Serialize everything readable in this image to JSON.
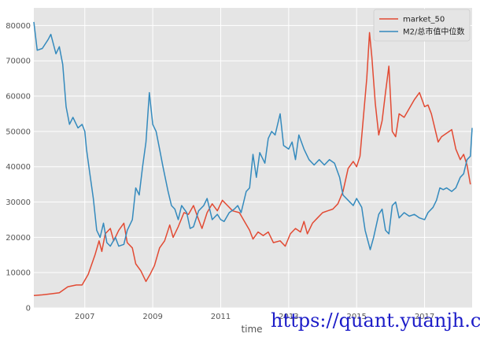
{
  "chart_data": {
    "type": "line",
    "title": "",
    "xlabel": "time",
    "ylabel": "",
    "x_range": [
      2005.5,
      2018.4
    ],
    "ylim": [
      0,
      85000
    ],
    "grid": true,
    "legend_position": "top-right",
    "x_ticks": [
      2007,
      2009,
      2011,
      2013,
      2015,
      2017
    ],
    "x_tick_labels": [
      "2007",
      "2009",
      "2011",
      "2013",
      "2015",
      "2017"
    ],
    "y_ticks": [
      0,
      10000,
      20000,
      30000,
      40000,
      50000,
      60000,
      70000,
      80000
    ],
    "y_tick_labels": [
      "0",
      "10000",
      "20000",
      "30000",
      "40000",
      "50000",
      "60000",
      "70000",
      "80000"
    ],
    "series": [
      {
        "name": "market_50",
        "color": "#e24a33",
        "points": [
          [
            2005.5,
            3500
          ],
          [
            2005.75,
            3700
          ],
          [
            2006.0,
            4000
          ],
          [
            2006.25,
            4300
          ],
          [
            2006.5,
            6000
          ],
          [
            2006.75,
            6500
          ],
          [
            2006.92,
            6500
          ],
          [
            2007.1,
            9500
          ],
          [
            2007.3,
            15000
          ],
          [
            2007.42,
            19000
          ],
          [
            2007.5,
            16000
          ],
          [
            2007.6,
            21000
          ],
          [
            2007.75,
            22500
          ],
          [
            2007.85,
            19000
          ],
          [
            2008.0,
            22000
          ],
          [
            2008.15,
            24000
          ],
          [
            2008.25,
            18500
          ],
          [
            2008.4,
            17000
          ],
          [
            2008.5,
            12500
          ],
          [
            2008.65,
            10500
          ],
          [
            2008.8,
            7500
          ],
          [
            2008.92,
            9500
          ],
          [
            2009.05,
            12000
          ],
          [
            2009.2,
            17000
          ],
          [
            2009.35,
            19000
          ],
          [
            2009.5,
            23500
          ],
          [
            2009.6,
            20000
          ],
          [
            2009.75,
            23000
          ],
          [
            2009.92,
            27000
          ],
          [
            2010.05,
            26500
          ],
          [
            2010.2,
            29000
          ],
          [
            2010.35,
            25000
          ],
          [
            2010.45,
            22500
          ],
          [
            2010.6,
            27000
          ],
          [
            2010.75,
            29500
          ],
          [
            2010.9,
            27500
          ],
          [
            2011.05,
            30500
          ],
          [
            2011.2,
            29000
          ],
          [
            2011.35,
            27500
          ],
          [
            2011.55,
            27000
          ],
          [
            2011.7,
            24500
          ],
          [
            2011.85,
            22000
          ],
          [
            2011.95,
            19500
          ],
          [
            2012.1,
            21500
          ],
          [
            2012.25,
            20500
          ],
          [
            2012.4,
            21500
          ],
          [
            2012.55,
            18500
          ],
          [
            2012.75,
            19000
          ],
          [
            2012.9,
            17500
          ],
          [
            2013.05,
            21000
          ],
          [
            2013.2,
            22500
          ],
          [
            2013.35,
            21500
          ],
          [
            2013.45,
            24500
          ],
          [
            2013.55,
            21000
          ],
          [
            2013.7,
            24000
          ],
          [
            2013.85,
            25500
          ],
          [
            2014.0,
            27000
          ],
          [
            2014.15,
            27500
          ],
          [
            2014.3,
            28000
          ],
          [
            2014.45,
            29500
          ],
          [
            2014.6,
            33000
          ],
          [
            2014.75,
            39500
          ],
          [
            2014.9,
            41500
          ],
          [
            2015.0,
            40000
          ],
          [
            2015.1,
            43000
          ],
          [
            2015.2,
            54000
          ],
          [
            2015.3,
            65000
          ],
          [
            2015.38,
            78000
          ],
          [
            2015.45,
            71000
          ],
          [
            2015.55,
            58000
          ],
          [
            2015.65,
            49000
          ],
          [
            2015.75,
            53000
          ],
          [
            2015.85,
            61000
          ],
          [
            2015.95,
            68500
          ],
          [
            2016.05,
            50000
          ],
          [
            2016.15,
            48500
          ],
          [
            2016.25,
            55000
          ],
          [
            2016.4,
            54000
          ],
          [
            2016.55,
            56500
          ],
          [
            2016.7,
            59000
          ],
          [
            2016.85,
            61000
          ],
          [
            2017.0,
            57000
          ],
          [
            2017.1,
            57500
          ],
          [
            2017.2,
            55000
          ],
          [
            2017.3,
            51000
          ],
          [
            2017.4,
            47000
          ],
          [
            2017.5,
            48500
          ],
          [
            2017.65,
            49500
          ],
          [
            2017.8,
            50500
          ],
          [
            2017.92,
            45000
          ],
          [
            2018.05,
            42000
          ],
          [
            2018.15,
            43500
          ],
          [
            2018.25,
            40500
          ],
          [
            2018.35,
            35000
          ]
        ]
      },
      {
        "name": "M2/总市值中位数",
        "color": "#348abd",
        "points": [
          [
            2005.5,
            81000
          ],
          [
            2005.6,
            73000
          ],
          [
            2005.75,
            73500
          ],
          [
            2005.92,
            76000
          ],
          [
            2006.0,
            77500
          ],
          [
            2006.15,
            72000
          ],
          [
            2006.25,
            74000
          ],
          [
            2006.35,
            69000
          ],
          [
            2006.45,
            57000
          ],
          [
            2006.55,
            52000
          ],
          [
            2006.65,
            54000
          ],
          [
            2006.8,
            51000
          ],
          [
            2006.92,
            52000
          ],
          [
            2007.0,
            50000
          ],
          [
            2007.05,
            45000
          ],
          [
            2007.15,
            38000
          ],
          [
            2007.25,
            31000
          ],
          [
            2007.35,
            22000
          ],
          [
            2007.45,
            20000
          ],
          [
            2007.55,
            24000
          ],
          [
            2007.65,
            18500
          ],
          [
            2007.75,
            17500
          ],
          [
            2007.9,
            20000
          ],
          [
            2008.0,
            17500
          ],
          [
            2008.15,
            18000
          ],
          [
            2008.25,
            22000
          ],
          [
            2008.4,
            25000
          ],
          [
            2008.5,
            34000
          ],
          [
            2008.6,
            32000
          ],
          [
            2008.7,
            40000
          ],
          [
            2008.8,
            47000
          ],
          [
            2008.9,
            61000
          ],
          [
            2009.0,
            52000
          ],
          [
            2009.1,
            50000
          ],
          [
            2009.2,
            45000
          ],
          [
            2009.3,
            40000
          ],
          [
            2009.45,
            33000
          ],
          [
            2009.55,
            29000
          ],
          [
            2009.65,
            28000
          ],
          [
            2009.75,
            25000
          ],
          [
            2009.85,
            29000
          ],
          [
            2010.0,
            27000
          ],
          [
            2010.1,
            22500
          ],
          [
            2010.2,
            23000
          ],
          [
            2010.35,
            27500
          ],
          [
            2010.5,
            29000
          ],
          [
            2010.6,
            31000
          ],
          [
            2010.75,
            25000
          ],
          [
            2010.9,
            26500
          ],
          [
            2011.0,
            25000
          ],
          [
            2011.1,
            24500
          ],
          [
            2011.25,
            27000
          ],
          [
            2011.4,
            28000
          ],
          [
            2011.5,
            29000
          ],
          [
            2011.6,
            27000
          ],
          [
            2011.75,
            33000
          ],
          [
            2011.85,
            34000
          ],
          [
            2011.95,
            43500
          ],
          [
            2012.05,
            37000
          ],
          [
            2012.15,
            44000
          ],
          [
            2012.3,
            41000
          ],
          [
            2012.4,
            48000
          ],
          [
            2012.5,
            50000
          ],
          [
            2012.6,
            49000
          ],
          [
            2012.75,
            55000
          ],
          [
            2012.85,
            46000
          ],
          [
            2013.0,
            45000
          ],
          [
            2013.1,
            47000
          ],
          [
            2013.2,
            42000
          ],
          [
            2013.3,
            49000
          ],
          [
            2013.45,
            45000
          ],
          [
            2013.6,
            42000
          ],
          [
            2013.75,
            40500
          ],
          [
            2013.9,
            42000
          ],
          [
            2014.05,
            40500
          ],
          [
            2014.2,
            42000
          ],
          [
            2014.35,
            41000
          ],
          [
            2014.5,
            37000
          ],
          [
            2014.6,
            32000
          ],
          [
            2014.75,
            30500
          ],
          [
            2014.9,
            29000
          ],
          [
            2015.0,
            31000
          ],
          [
            2015.15,
            28500
          ],
          [
            2015.25,
            22000
          ],
          [
            2015.4,
            16500
          ],
          [
            2015.5,
            20000
          ],
          [
            2015.65,
            26500
          ],
          [
            2015.75,
            28000
          ],
          [
            2015.85,
            22000
          ],
          [
            2015.95,
            21000
          ],
          [
            2016.05,
            29000
          ],
          [
            2016.15,
            30000
          ],
          [
            2016.25,
            25500
          ],
          [
            2016.4,
            27000
          ],
          [
            2016.55,
            26000
          ],
          [
            2016.7,
            26500
          ],
          [
            2016.85,
            25500
          ],
          [
            2017.0,
            25000
          ],
          [
            2017.1,
            27000
          ],
          [
            2017.25,
            28500
          ],
          [
            2017.35,
            30500
          ],
          [
            2017.45,
            34000
          ],
          [
            2017.55,
            33500
          ],
          [
            2017.65,
            34000
          ],
          [
            2017.8,
            33000
          ],
          [
            2017.92,
            34000
          ],
          [
            2018.05,
            37000
          ],
          [
            2018.15,
            38000
          ],
          [
            2018.25,
            42000
          ],
          [
            2018.35,
            43000
          ],
          [
            2018.4,
            51000
          ]
        ]
      }
    ]
  },
  "watermark": "https://quant.yuanjh.cn"
}
